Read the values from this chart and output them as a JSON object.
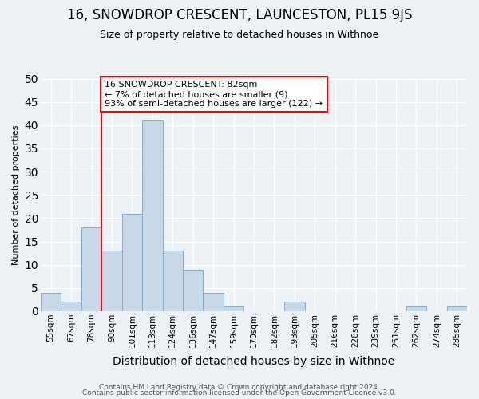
{
  "title": "16, SNOWDROP CRESCENT, LAUNCESTON, PL15 9JS",
  "subtitle": "Size of property relative to detached houses in Withnoe",
  "xlabel": "Distribution of detached houses by size in Withnoe",
  "ylabel": "Number of detached properties",
  "bar_labels": [
    "55sqm",
    "67sqm",
    "78sqm",
    "90sqm",
    "101sqm",
    "113sqm",
    "124sqm",
    "136sqm",
    "147sqm",
    "159sqm",
    "170sqm",
    "182sqm",
    "193sqm",
    "205sqm",
    "216sqm",
    "228sqm",
    "239sqm",
    "251sqm",
    "262sqm",
    "274sqm",
    "285sqm"
  ],
  "bar_values": [
    4,
    2,
    18,
    13,
    21,
    41,
    13,
    9,
    4,
    1,
    0,
    0,
    2,
    0,
    0,
    0,
    0,
    0,
    1,
    0,
    1
  ],
  "bar_color": "#c8d8e8",
  "bar_edge_color": "#8aaac8",
  "property_line_x": 2.5,
  "annotation_line1": "16 SNOWDROP CRESCENT: 82sqm",
  "annotation_line2": "← 7% of detached houses are smaller (9)",
  "annotation_line3": "93% of semi-detached houses are larger (122) →",
  "annotation_box_color": "white",
  "annotation_box_edge_color": "red",
  "property_line_color": "red",
  "ylim": [
    0,
    50
  ],
  "yticks": [
    0,
    5,
    10,
    15,
    20,
    25,
    30,
    35,
    40,
    45,
    50
  ],
  "footer_line1": "Contains HM Land Registry data © Crown copyright and database right 2024.",
  "footer_line2": "Contains public sector information licensed under the Open Government Licence v3.0.",
  "bg_color": "#edf2f7",
  "grid_color": "white",
  "title_fontsize": 12,
  "subtitle_fontsize": 9,
  "xlabel_fontsize": 10,
  "ylabel_fontsize": 8,
  "tick_fontsize": 7.5,
  "footer_fontsize": 6.5
}
